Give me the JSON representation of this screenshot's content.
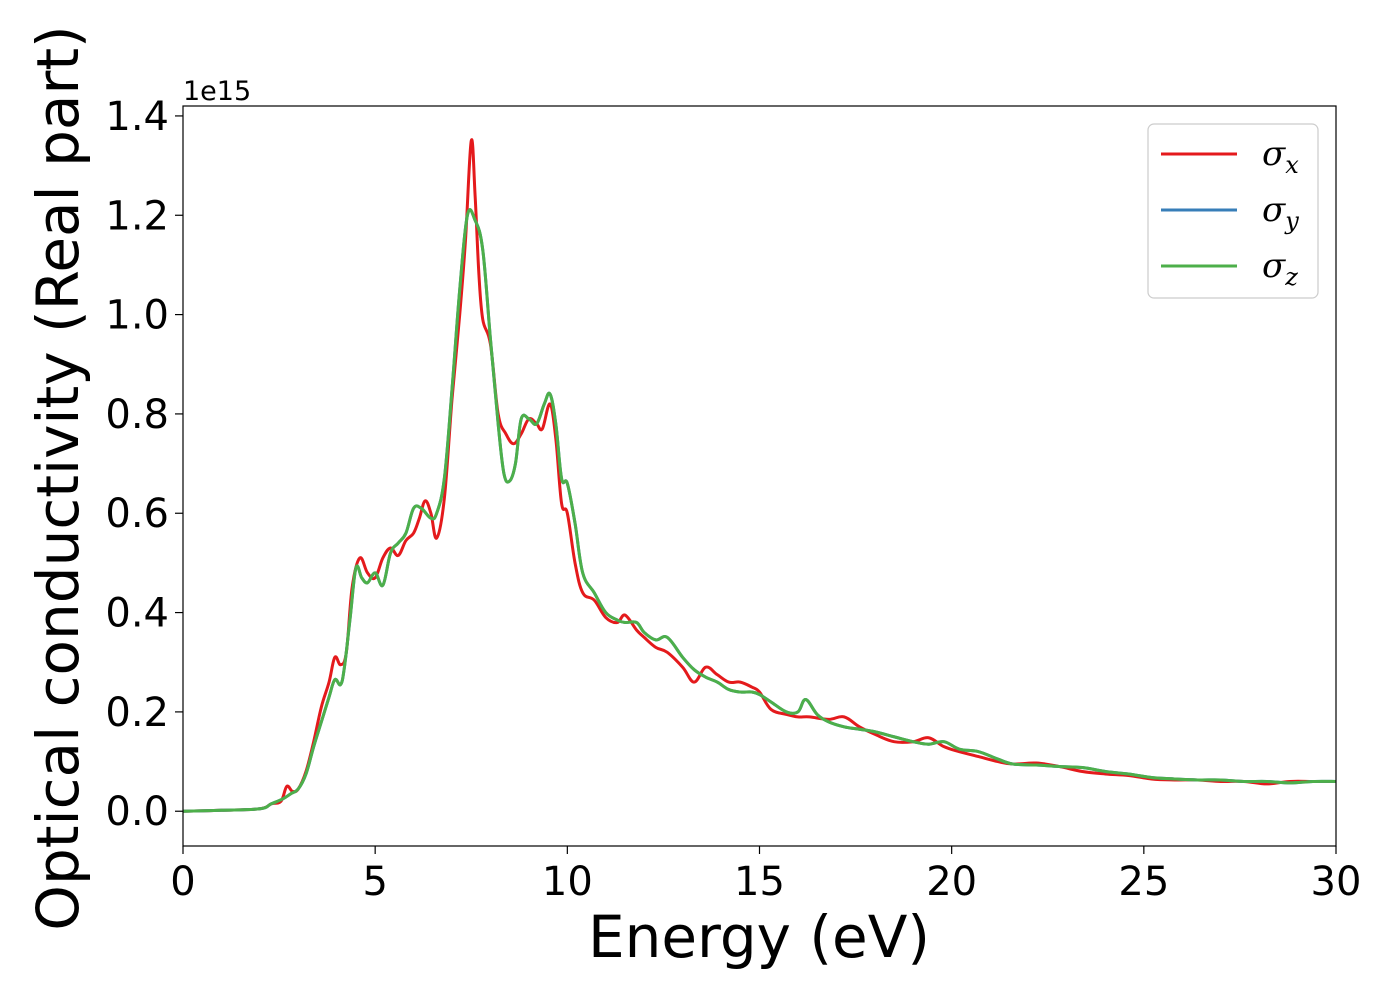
{
  "chart_data": {
    "type": "line",
    "title": "",
    "xlabel": "Energy (eV)",
    "ylabel": "Optical conductivity (Real part)",
    "y_offset_label": "1e15",
    "xlim": [
      0,
      30
    ],
    "ylim": [
      -0.07,
      1.42
    ],
    "xticks": [
      0,
      5,
      10,
      15,
      20,
      25,
      30
    ],
    "xtick_labels": [
      "0",
      "5",
      "10",
      "15",
      "20",
      "25",
      "30"
    ],
    "yticks": [
      0.0,
      0.2,
      0.4,
      0.6,
      0.8,
      1.0,
      1.2,
      1.4
    ],
    "ytick_labels": [
      "0.0",
      "0.2",
      "0.4",
      "0.6",
      "0.8",
      "1.0",
      "1.2",
      "1.4"
    ],
    "grid": false,
    "legend": "top-right",
    "series": [
      {
        "name": "σx",
        "legend_symbol": "σ",
        "legend_sub": "x",
        "color": "#e41a1c",
        "x": [
          0,
          1,
          2,
          2.3,
          2.55,
          2.7,
          2.85,
          3.0,
          3.2,
          3.4,
          3.6,
          3.8,
          3.95,
          4.1,
          4.25,
          4.4,
          4.6,
          4.8,
          5.0,
          5.2,
          5.4,
          5.6,
          5.8,
          6.0,
          6.15,
          6.3,
          6.45,
          6.6,
          6.8,
          7.0,
          7.2,
          7.35,
          7.5,
          7.6,
          7.7,
          7.8,
          8.0,
          8.2,
          8.4,
          8.6,
          8.8,
          9.0,
          9.2,
          9.35,
          9.55,
          9.7,
          9.85,
          10.0,
          10.2,
          10.4,
          10.7,
          11.0,
          11.3,
          11.5,
          11.8,
          12.0,
          12.3,
          12.6,
          13.0,
          13.3,
          13.6,
          13.9,
          14.2,
          14.5,
          14.8,
          15.0,
          15.3,
          15.7,
          16.0,
          16.3,
          16.8,
          17.2,
          17.6,
          18.0,
          18.5,
          19.0,
          19.4,
          19.8,
          20.2,
          20.7,
          21.2,
          21.6,
          22.2,
          22.8,
          23.4,
          24.0,
          24.6,
          25.2,
          25.8,
          26.4,
          27.0,
          27.6,
          28.2,
          28.8,
          29.4,
          30.0
        ],
        "y": [
          0.0,
          0.002,
          0.005,
          0.015,
          0.02,
          0.05,
          0.04,
          0.045,
          0.08,
          0.14,
          0.21,
          0.26,
          0.31,
          0.295,
          0.32,
          0.45,
          0.51,
          0.48,
          0.47,
          0.51,
          0.53,
          0.515,
          0.545,
          0.56,
          0.59,
          0.625,
          0.6,
          0.55,
          0.63,
          0.83,
          1.0,
          1.15,
          1.35,
          1.24,
          1.08,
          0.99,
          0.94,
          0.8,
          0.76,
          0.74,
          0.76,
          0.79,
          0.78,
          0.77,
          0.82,
          0.75,
          0.62,
          0.6,
          0.5,
          0.44,
          0.425,
          0.39,
          0.38,
          0.395,
          0.365,
          0.35,
          0.33,
          0.32,
          0.29,
          0.26,
          0.29,
          0.275,
          0.26,
          0.26,
          0.25,
          0.24,
          0.205,
          0.195,
          0.19,
          0.19,
          0.185,
          0.19,
          0.17,
          0.155,
          0.14,
          0.14,
          0.148,
          0.13,
          0.12,
          0.11,
          0.1,
          0.095,
          0.097,
          0.09,
          0.08,
          0.075,
          0.072,
          0.065,
          0.063,
          0.063,
          0.06,
          0.06,
          0.055,
          0.06,
          0.06,
          0.06
        ]
      },
      {
        "name": "σy",
        "legend_symbol": "σ",
        "legend_sub": "y",
        "color": "#377eb8",
        "x": [
          0,
          1,
          2,
          2.3,
          2.6,
          2.8,
          3.0,
          3.2,
          3.4,
          3.6,
          3.8,
          3.95,
          4.1,
          4.2,
          4.35,
          4.5,
          4.65,
          4.8,
          5.0,
          5.2,
          5.4,
          5.6,
          5.8,
          6.0,
          6.2,
          6.45,
          6.6,
          6.8,
          7.0,
          7.2,
          7.4,
          7.6,
          7.8,
          8.0,
          8.2,
          8.35,
          8.5,
          8.65,
          8.8,
          9.0,
          9.2,
          9.4,
          9.55,
          9.7,
          9.85,
          10.0,
          10.2,
          10.4,
          10.7,
          11.0,
          11.3,
          11.5,
          11.8,
          12.0,
          12.3,
          12.6,
          13.0,
          13.3,
          13.6,
          13.9,
          14.2,
          14.5,
          14.8,
          15.0,
          15.3,
          15.7,
          16.0,
          16.2,
          16.5,
          16.8,
          17.2,
          17.6,
          18.0,
          18.5,
          19.0,
          19.4,
          19.8,
          20.2,
          20.7,
          21.2,
          21.6,
          22.2,
          22.8,
          23.4,
          24.0,
          24.6,
          25.2,
          25.8,
          26.4,
          27.0,
          27.6,
          28.2,
          28.8,
          29.4,
          30.0
        ],
        "y": [
          0.0,
          0.002,
          0.005,
          0.015,
          0.025,
          0.035,
          0.045,
          0.075,
          0.13,
          0.18,
          0.23,
          0.265,
          0.255,
          0.29,
          0.39,
          0.49,
          0.47,
          0.46,
          0.48,
          0.455,
          0.52,
          0.54,
          0.56,
          0.61,
          0.61,
          0.59,
          0.6,
          0.67,
          0.85,
          1.05,
          1.2,
          1.19,
          1.13,
          0.95,
          0.78,
          0.68,
          0.665,
          0.7,
          0.79,
          0.79,
          0.78,
          0.82,
          0.84,
          0.78,
          0.67,
          0.66,
          0.58,
          0.48,
          0.44,
          0.4,
          0.385,
          0.38,
          0.38,
          0.36,
          0.345,
          0.35,
          0.31,
          0.285,
          0.27,
          0.26,
          0.245,
          0.24,
          0.24,
          0.235,
          0.22,
          0.2,
          0.2,
          0.225,
          0.195,
          0.18,
          0.17,
          0.165,
          0.16,
          0.15,
          0.14,
          0.135,
          0.14,
          0.125,
          0.12,
          0.105,
          0.095,
          0.093,
          0.09,
          0.088,
          0.08,
          0.075,
          0.068,
          0.065,
          0.063,
          0.063,
          0.06,
          0.06,
          0.057,
          0.06,
          0.06
        ]
      },
      {
        "name": "σz",
        "legend_symbol": "σ",
        "legend_sub": "z",
        "color": "#4daf4a",
        "x": [
          0,
          1,
          2,
          2.3,
          2.6,
          2.8,
          3.0,
          3.2,
          3.4,
          3.6,
          3.8,
          3.95,
          4.1,
          4.2,
          4.35,
          4.5,
          4.65,
          4.8,
          5.0,
          5.2,
          5.4,
          5.6,
          5.8,
          6.0,
          6.2,
          6.45,
          6.6,
          6.8,
          7.0,
          7.2,
          7.4,
          7.6,
          7.8,
          8.0,
          8.2,
          8.35,
          8.5,
          8.65,
          8.8,
          9.0,
          9.2,
          9.4,
          9.55,
          9.7,
          9.85,
          10.0,
          10.2,
          10.4,
          10.7,
          11.0,
          11.3,
          11.5,
          11.8,
          12.0,
          12.3,
          12.6,
          13.0,
          13.3,
          13.6,
          13.9,
          14.2,
          14.5,
          14.8,
          15.0,
          15.3,
          15.7,
          16.0,
          16.2,
          16.5,
          16.8,
          17.2,
          17.6,
          18.0,
          18.5,
          19.0,
          19.4,
          19.8,
          20.2,
          20.7,
          21.2,
          21.6,
          22.2,
          22.8,
          23.4,
          24.0,
          24.6,
          25.2,
          25.8,
          26.4,
          27.0,
          27.6,
          28.2,
          28.8,
          29.4,
          30.0
        ],
        "y": [
          0.0,
          0.002,
          0.005,
          0.015,
          0.025,
          0.035,
          0.045,
          0.075,
          0.13,
          0.18,
          0.23,
          0.265,
          0.255,
          0.29,
          0.39,
          0.49,
          0.47,
          0.46,
          0.48,
          0.455,
          0.52,
          0.54,
          0.56,
          0.61,
          0.61,
          0.59,
          0.6,
          0.67,
          0.85,
          1.05,
          1.2,
          1.19,
          1.13,
          0.95,
          0.78,
          0.68,
          0.665,
          0.7,
          0.79,
          0.79,
          0.78,
          0.82,
          0.84,
          0.78,
          0.67,
          0.66,
          0.58,
          0.48,
          0.44,
          0.4,
          0.385,
          0.38,
          0.38,
          0.36,
          0.345,
          0.35,
          0.31,
          0.285,
          0.27,
          0.26,
          0.245,
          0.24,
          0.24,
          0.235,
          0.22,
          0.2,
          0.2,
          0.225,
          0.195,
          0.18,
          0.17,
          0.165,
          0.16,
          0.15,
          0.14,
          0.135,
          0.14,
          0.125,
          0.12,
          0.105,
          0.095,
          0.093,
          0.09,
          0.088,
          0.08,
          0.075,
          0.068,
          0.065,
          0.063,
          0.063,
          0.06,
          0.06,
          0.057,
          0.06,
          0.06
        ]
      }
    ]
  }
}
